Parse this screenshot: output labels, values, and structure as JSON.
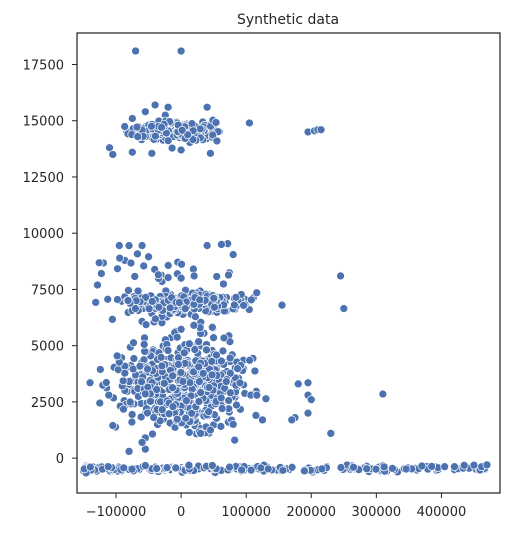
{
  "chart_data": {
    "type": "scatter",
    "title": "Synthetic data",
    "xlabel": "",
    "ylabel": "",
    "xlim": [
      -160000,
      490000
    ],
    "ylim": [
      -1550,
      18900
    ],
    "x_ticks": [
      -100000,
      0,
      100000,
      200000,
      300000,
      400000
    ],
    "x_tick_labels": [
      "−100000",
      "0",
      "100000",
      "200000",
      "300000",
      "400000"
    ],
    "y_ticks": [
      0,
      2500,
      5000,
      7500,
      10000,
      12500,
      15000,
      17500
    ],
    "y_tick_labels": [
      "0",
      "2500",
      "5000",
      "7500",
      "10000",
      "12500",
      "15000",
      "17500"
    ],
    "grid": false,
    "legend": "none",
    "marker_color": "#4c72b0",
    "marker_edge": "#ffffff",
    "clusters": [
      {
        "name": "",
        "x_range": [
          -150000,
          470000
        ],
        "y_center": -480,
        "y_spread": 60,
        "count": 230,
        "density": "decreasing"
      },
      {
        "name": "",
        "x_range": [
          -145000,
          150000
        ],
        "y_center": 3200,
        "y_spread": 950,
        "count": 560,
        "density": "center"
      },
      {
        "name": "",
        "x_range": [
          -140000,
          145000
        ],
        "y_center": 6900,
        "y_spread": 220,
        "count": 280,
        "density": "center"
      },
      {
        "name": "",
        "x_range": [
          -105000,
          82000
        ],
        "y_center": 14550,
        "y_spread": 230,
        "count": 200,
        "density": "center"
      },
      {
        "name": "",
        "x_range": [
          -140000,
          80000
        ],
        "y_center": 8400,
        "y_spread": 600,
        "count": 28,
        "density": "uniform"
      },
      {
        "name": "",
        "x_range": [
          -70000,
          50000
        ],
        "y_center": 5550,
        "y_spread": 330,
        "count": 14,
        "density": "uniform"
      }
    ],
    "points": [
      {
        "x": -70000,
        "y": 18100
      },
      {
        "x": 0,
        "y": 18100
      },
      {
        "x": -75000,
        "y": 15100
      },
      {
        "x": -55000,
        "y": 15400
      },
      {
        "x": -40000,
        "y": 15700
      },
      {
        "x": -20000,
        "y": 15600
      },
      {
        "x": 40000,
        "y": 15600
      },
      {
        "x": -110000,
        "y": 13800
      },
      {
        "x": -105000,
        "y": 13500
      },
      {
        "x": -75000,
        "y": 13600
      },
      {
        "x": -45000,
        "y": 13550
      },
      {
        "x": 0,
        "y": 13700
      },
      {
        "x": 45000,
        "y": 13550
      },
      {
        "x": 55000,
        "y": 14100
      },
      {
        "x": 105000,
        "y": 14900
      },
      {
        "x": 195000,
        "y": 14500
      },
      {
        "x": 205000,
        "y": 14550
      },
      {
        "x": 210000,
        "y": 14600
      },
      {
        "x": 215000,
        "y": 14600
      },
      {
        "x": -95000,
        "y": 9450
      },
      {
        "x": -80000,
        "y": 9450
      },
      {
        "x": -60000,
        "y": 9450
      },
      {
        "x": -50000,
        "y": 8950
      },
      {
        "x": -35000,
        "y": 8150
      },
      {
        "x": 0,
        "y": 8000
      },
      {
        "x": 20000,
        "y": 8100
      },
      {
        "x": 40000,
        "y": 9450
      },
      {
        "x": 62000,
        "y": 9500
      },
      {
        "x": 80000,
        "y": 9050
      },
      {
        "x": 245000,
        "y": 8100
      },
      {
        "x": 250000,
        "y": 6650
      },
      {
        "x": 155000,
        "y": 6800
      },
      {
        "x": 310000,
        "y": 2850
      },
      {
        "x": 230000,
        "y": 1100
      },
      {
        "x": 180000,
        "y": 3300
      },
      {
        "x": 195000,
        "y": 3350
      },
      {
        "x": 195000,
        "y": 2800
      },
      {
        "x": 200000,
        "y": 2600
      },
      {
        "x": 195000,
        "y": 2000
      },
      {
        "x": 175000,
        "y": 1800
      },
      {
        "x": 170000,
        "y": 1700
      },
      {
        "x": -55000,
        "y": 400
      },
      {
        "x": -55000,
        "y": 900
      },
      {
        "x": -60000,
        "y": 700
      },
      {
        "x": -105000,
        "y": 1450
      },
      {
        "x": 80000,
        "y": 1500
      },
      {
        "x": 30000,
        "y": 1100
      },
      {
        "x": 45000,
        "y": 1250
      },
      {
        "x": -125000,
        "y": 2450
      },
      {
        "x": -140000,
        "y": 3350
      },
      {
        "x": 115000,
        "y": 1900
      },
      {
        "x": 125000,
        "y": 1700
      },
      {
        "x": -80000,
        "y": 300
      },
      {
        "x": 405000,
        "y": -380
      },
      {
        "x": 420000,
        "y": -380
      },
      {
        "x": 435000,
        "y": -320
      },
      {
        "x": 450000,
        "y": -310
      },
      {
        "x": 470000,
        "y": -300
      },
      {
        "x": 370000,
        "y": -350
      },
      {
        "x": 385000,
        "y": -370
      },
      {
        "x": -112000,
        "y": -380
      },
      {
        "x": -55000,
        "y": -330
      },
      {
        "x": 12000,
        "y": -320
      },
      {
        "x": 48000,
        "y": -330
      }
    ]
  }
}
